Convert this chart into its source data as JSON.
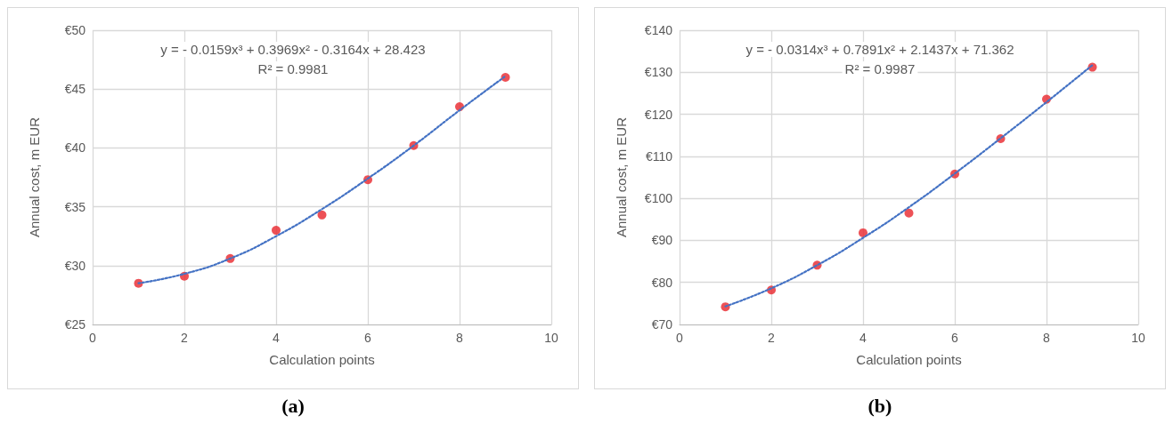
{
  "chart_data": [
    {
      "type": "scatter",
      "title": "(a)",
      "xlabel": "Calculation points",
      "ylabel": "Annual cost, m EUR",
      "annotations": [
        "y = - 0.0159x³ + 0.3969x² - 0.3164x + 28.423",
        "R² = 0.9981"
      ],
      "series": [
        {
          "color": "#e8262c",
          "marker": "circle",
          "x": [
            1,
            2,
            3,
            4,
            5,
            6,
            7,
            8,
            9
          ],
          "values": [
            28.5,
            29.1,
            30.6,
            33.0,
            34.3,
            37.3,
            40.2,
            43.5,
            46.0
          ]
        },
        {
          "type": "line",
          "color": "#4472c4",
          "line_style": "dotted",
          "x": [
            1,
            2,
            3,
            4,
            5,
            6,
            7,
            8,
            9
          ],
          "values": [
            28.5,
            29.3,
            30.6,
            32.5,
            34.8,
            37.4,
            40.2,
            43.2,
            46.1
          ]
        }
      ],
      "xlim": [
        0,
        10
      ],
      "xticks": [
        0,
        2,
        4,
        6,
        8,
        10
      ],
      "ylim": [
        25,
        50
      ],
      "yticks": [
        {
          "value": 25,
          "label": "€25"
        },
        {
          "value": 30,
          "label": "€30"
        },
        {
          "value": 35,
          "label": "€35"
        },
        {
          "value": 40,
          "label": "€40"
        },
        {
          "value": 45,
          "label": "€45"
        },
        {
          "value": 50,
          "label": "€50"
        }
      ],
      "grid": true
    },
    {
      "type": "scatter",
      "title": "(b)",
      "xlabel": "Calculation points",
      "ylabel": "Annual cost, m EUR",
      "annotations": [
        "y = - 0.0314x³ + 0.7891x² + 2.1437x + 71.362",
        "R² = 0.9987"
      ],
      "series": [
        {
          "color": "#e8262c",
          "marker": "circle",
          "x": [
            1,
            2,
            3,
            4,
            5,
            6,
            7,
            8,
            9
          ],
          "values": [
            74.2,
            78.2,
            84.1,
            91.8,
            96.5,
            105.8,
            114.2,
            123.6,
            131.2
          ]
        },
        {
          "type": "line",
          "color": "#4472c4",
          "line_style": "dotted",
          "x": [
            1,
            2,
            3,
            4,
            5,
            6,
            7,
            8,
            9
          ],
          "values": [
            74.3,
            78.6,
            84.1,
            90.6,
            97.9,
            105.9,
            114.3,
            122.9,
            131.7
          ]
        }
      ],
      "xlim": [
        0,
        10
      ],
      "xticks": [
        0,
        2,
        4,
        6,
        8,
        10
      ],
      "ylim": [
        70,
        140
      ],
      "yticks": [
        {
          "value": 70,
          "label": "€70"
        },
        {
          "value": 80,
          "label": "€80"
        },
        {
          "value": 90,
          "label": "€90"
        },
        {
          "value": 100,
          "label": "€100"
        },
        {
          "value": 110,
          "label": "€110"
        },
        {
          "value": 120,
          "label": "€120"
        },
        {
          "value": 130,
          "label": "€130"
        },
        {
          "value": 140,
          "label": "€140"
        }
      ],
      "grid": true
    }
  ]
}
